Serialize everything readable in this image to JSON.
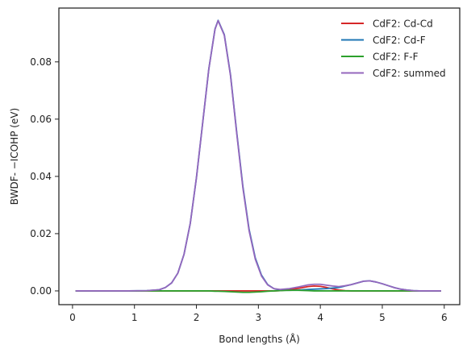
{
  "chart_data": {
    "type": "line",
    "xlabel": "Bond lengths (Å)",
    "ylabel": "BWDF- −ICOHP (eV)",
    "xlim": [
      -0.22,
      6.25
    ],
    "ylim": [
      -0.0048,
      0.0988
    ],
    "xticks": [
      0,
      1,
      2,
      3,
      4,
      5,
      6
    ],
    "xtick_labels": [
      "0",
      "1",
      "2",
      "3",
      "4",
      "5",
      "6"
    ],
    "yticks": [
      0.0,
      0.02,
      0.04,
      0.06,
      0.08
    ],
    "ytick_labels": [
      "0.00",
      "0.02",
      "0.04",
      "0.06",
      "0.08"
    ],
    "grid": false,
    "legend_position": "top-right",
    "colors": {
      "Cd-Cd": "#d62728",
      "Cd-F": "#1f77b4",
      "F-F": "#2ca02c",
      "summed": "#9467bd"
    },
    "x": [
      0.05,
      0.3,
      0.6,
      0.9,
      1.2,
      1.4,
      1.5,
      1.6,
      1.7,
      1.8,
      1.9,
      2.0,
      2.1,
      2.2,
      2.3,
      2.35,
      2.45,
      2.55,
      2.65,
      2.75,
      2.85,
      2.95,
      3.05,
      3.15,
      3.25,
      3.35,
      3.5,
      3.65,
      3.8,
      3.9,
      4.0,
      4.1,
      4.2,
      4.3,
      4.4,
      4.5,
      4.6,
      4.7,
      4.8,
      4.9,
      5.0,
      5.1,
      5.2,
      5.3,
      5.4,
      5.5,
      5.6,
      5.8,
      5.95
    ],
    "series": [
      {
        "name": "CdF2: Cd-Cd",
        "values": [
          0.0,
          0.0,
          0.0,
          0.0,
          0.0,
          0.0,
          0.0,
          0.0,
          0.0,
          0.0,
          0.0,
          0.0,
          0.0,
          0.0,
          0.0,
          0.0,
          0.0,
          0.0,
          0.0,
          0.0,
          0.0,
          0.0,
          0.0,
          0.0,
          0.0,
          0.0001,
          0.0004,
          0.0009,
          0.0015,
          0.0017,
          0.0016,
          0.0012,
          0.0007,
          0.0003,
          0.0001,
          0.0,
          0.0,
          0.0,
          0.0,
          0.0,
          0.0,
          0.0,
          0.0,
          0.0,
          0.0,
          0.0,
          0.0,
          0.0,
          0.0
        ]
      },
      {
        "name": "CdF2: Cd-F",
        "values": [
          0.0,
          0.0,
          0.0,
          0.0,
          0.0001,
          0.0004,
          0.0012,
          0.0028,
          0.0062,
          0.0128,
          0.0235,
          0.0395,
          0.0585,
          0.0775,
          0.0915,
          0.0945,
          0.0895,
          0.0755,
          0.0555,
          0.0365,
          0.0215,
          0.0115,
          0.0055,
          0.0022,
          0.0008,
          0.0003,
          0.0002,
          0.0003,
          0.0005,
          0.0006,
          0.0007,
          0.0008,
          0.001,
          0.0012,
          0.0017,
          0.0022,
          0.0028,
          0.0034,
          0.0035,
          0.0031,
          0.0025,
          0.0018,
          0.0011,
          0.0006,
          0.0003,
          0.0001,
          0.0,
          0.0,
          0.0
        ]
      },
      {
        "name": "CdF2: F-F",
        "values": [
          0.0,
          0.0,
          0.0,
          0.0,
          0.0,
          0.0,
          0.0,
          0.0,
          0.0,
          0.0,
          0.0,
          0.0,
          0.0,
          0.0,
          -0.0001,
          -0.0001,
          -0.0002,
          -0.0003,
          -0.0004,
          -0.0005,
          -0.0005,
          -0.0004,
          -0.0003,
          -0.0001,
          0.0,
          0.0001,
          0.0002,
          0.0002,
          0.0001,
          0.0,
          0.0,
          0.0,
          0.0,
          0.0,
          0.0,
          0.0,
          0.0,
          0.0,
          0.0,
          0.0,
          0.0,
          0.0,
          0.0,
          0.0,
          0.0,
          0.0,
          0.0,
          0.0,
          0.0
        ]
      },
      {
        "name": "CdF2: summed",
        "values": [
          0.0,
          0.0,
          0.0,
          0.0,
          0.0001,
          0.0004,
          0.0012,
          0.0028,
          0.0062,
          0.0128,
          0.0235,
          0.0395,
          0.0585,
          0.0775,
          0.0914,
          0.0944,
          0.0893,
          0.0752,
          0.0551,
          0.036,
          0.021,
          0.0111,
          0.0052,
          0.0021,
          0.0008,
          0.0005,
          0.0008,
          0.0014,
          0.0021,
          0.0023,
          0.0023,
          0.002,
          0.0017,
          0.0015,
          0.0018,
          0.0022,
          0.0028,
          0.0034,
          0.0035,
          0.0031,
          0.0025,
          0.0018,
          0.0011,
          0.0006,
          0.0003,
          0.0001,
          0.0,
          0.0,
          0.0
        ]
      }
    ]
  }
}
